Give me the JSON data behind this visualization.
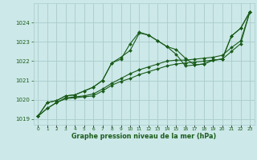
{
  "bg_color": "#cce8e8",
  "grid_color": "#aacccc",
  "line_color": "#1a5c1a",
  "marker_color": "#1a5c1a",
  "xlabel": "Graphe pression niveau de la mer (hPa)",
  "xlabel_color": "#1a5c1a",
  "ylim": [
    1018.7,
    1025.0
  ],
  "xlim": [
    -0.5,
    23.5
  ],
  "yticks": [
    1019,
    1020,
    1021,
    1022,
    1023,
    1024
  ],
  "xtick_labels": [
    "0",
    "1",
    "2",
    "3",
    "4",
    "5",
    "6",
    "7",
    "8",
    "9",
    "10",
    "11",
    "12",
    "13",
    "14",
    "15",
    "16",
    "17",
    "18",
    "19",
    "20",
    "21",
    "22",
    "23"
  ],
  "series": [
    [
      1019.15,
      1019.85,
      1019.95,
      1020.2,
      1020.25,
      1020.45,
      1020.65,
      1021.0,
      1021.9,
      1022.2,
      1022.55,
      1023.45,
      1023.35,
      1023.05,
      1022.75,
      1022.6,
      1022.15,
      1021.8,
      1021.85,
      1022.05,
      1022.1,
      1023.3,
      1023.7,
      1024.55
    ],
    [
      1019.15,
      1019.85,
      1019.95,
      1020.2,
      1020.25,
      1020.45,
      1020.65,
      1021.0,
      1021.9,
      1022.1,
      1022.9,
      1023.5,
      1023.35,
      1023.05,
      1022.75,
      1022.35,
      1021.75,
      1021.8,
      1021.85,
      1022.05,
      1022.1,
      1023.3,
      1023.7,
      1024.55
    ],
    [
      1019.15,
      1019.55,
      1019.85,
      1020.1,
      1020.15,
      1020.2,
      1020.3,
      1020.55,
      1020.85,
      1021.1,
      1021.35,
      1021.55,
      1021.7,
      1021.85,
      1022.0,
      1022.05,
      1022.05,
      1022.1,
      1022.15,
      1022.2,
      1022.3,
      1022.7,
      1023.05,
      1024.55
    ],
    [
      1019.15,
      1019.55,
      1019.85,
      1020.05,
      1020.1,
      1020.15,
      1020.2,
      1020.45,
      1020.75,
      1020.95,
      1021.1,
      1021.3,
      1021.45,
      1021.6,
      1021.75,
      1021.85,
      1021.9,
      1021.95,
      1022.0,
      1022.05,
      1022.1,
      1022.5,
      1022.9,
      1024.55
    ]
  ]
}
